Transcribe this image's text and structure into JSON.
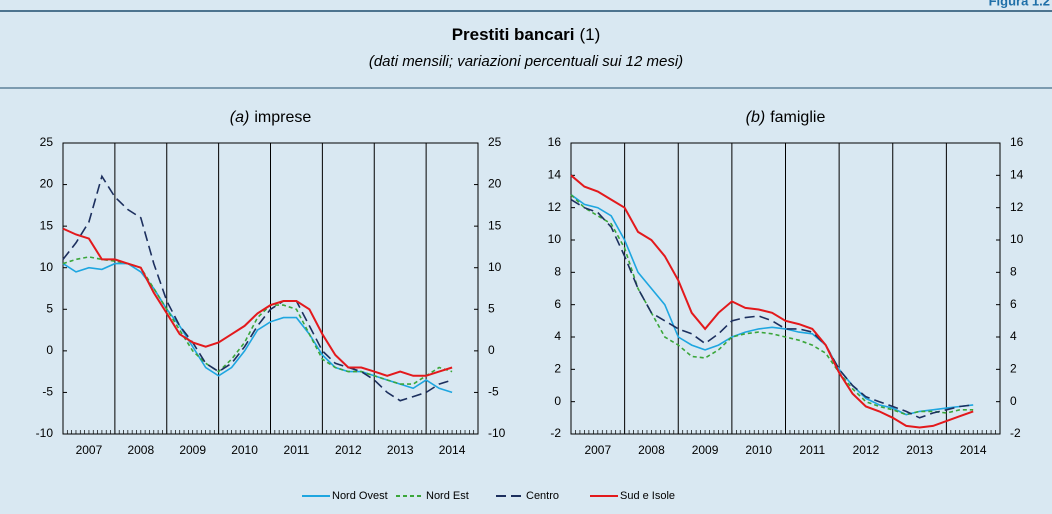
{
  "header": {
    "figure": "Figura 1.2",
    "title": "Prestiti bancari",
    "note": "(1)",
    "subtitle": "(dati mensili; variazioni percentuali sui 12 mesi)"
  },
  "chart_data": [
    {
      "type": "line",
      "panel": "(a)",
      "title": "imprese",
      "x": [
        2007,
        2007.25,
        2007.5,
        2007.75,
        2008,
        2008.25,
        2008.5,
        2008.75,
        2009,
        2009.25,
        2009.5,
        2009.75,
        2010,
        2010.25,
        2010.5,
        2010.75,
        2011,
        2011.25,
        2011.5,
        2011.75,
        2012,
        2012.25,
        2012.5,
        2012.75,
        2013,
        2013.25,
        2013.5,
        2013.75,
        2014,
        2014.25,
        2014.5
      ],
      "xlim": [
        2007,
        2015
      ],
      "xticks": [
        2007,
        2008,
        2009,
        2010,
        2011,
        2012,
        2013,
        2014
      ],
      "ylim": [
        -10,
        25
      ],
      "yticks": [
        -10,
        -5,
        0,
        5,
        10,
        15,
        20,
        25
      ],
      "series": [
        {
          "name": "Nord Ovest",
          "color": "#1ea6e0",
          "style": "solid",
          "values": [
            10.5,
            9.5,
            10,
            9.8,
            10.5,
            10.5,
            9.5,
            7.5,
            5,
            3,
            0.5,
            -2,
            -3,
            -2,
            0,
            2.5,
            3.5,
            4,
            4,
            2,
            -0.5,
            -2,
            -2.5,
            -2.5,
            -3,
            -3.5,
            -4,
            -4.5,
            -3.5,
            -4.5,
            -5
          ]
        },
        {
          "name": "Nord Est",
          "color": "#3aa63a",
          "style": "dashed",
          "values": [
            10.5,
            11,
            11.3,
            11,
            10.8,
            10.5,
            10,
            7.5,
            5,
            2.5,
            0,
            -1.5,
            -2.5,
            -1,
            1,
            4,
            5.5,
            5.5,
            5,
            2,
            -1,
            -2,
            -2.5,
            -2.5,
            -3,
            -3.5,
            -4,
            -4,
            -3,
            -2,
            -2.5
          ]
        },
        {
          "name": "Centro",
          "color": "#1c2f5e",
          "style": "long-dashed",
          "values": [
            11,
            13,
            15.5,
            21,
            18.5,
            17,
            16,
            10.5,
            6,
            3,
            1,
            -1.5,
            -2.5,
            -1.5,
            0.5,
            3,
            5,
            6,
            6,
            3,
            0,
            -1.5,
            -2,
            -2.5,
            -3.5,
            -5,
            -6,
            -5.5,
            -5,
            -4,
            -3.5
          ]
        },
        {
          "name": "Sud e Isole",
          "color": "#e3191c",
          "style": "solid",
          "values": [
            14.7,
            14,
            13.5,
            11,
            11,
            10.5,
            10,
            7,
            4.5,
            2,
            1,
            0.5,
            1,
            2,
            3,
            4.5,
            5.5,
            6,
            6,
            5,
            2,
            -0.5,
            -2,
            -2,
            -2.5,
            -3,
            -2.5,
            -3,
            -3,
            -2.5,
            -2
          ]
        }
      ]
    },
    {
      "type": "line",
      "panel": "(b)",
      "title": "famiglie",
      "x": [
        2007,
        2007.25,
        2007.5,
        2007.75,
        2008,
        2008.25,
        2008.5,
        2008.75,
        2009,
        2009.25,
        2009.5,
        2009.75,
        2010,
        2010.25,
        2010.5,
        2010.75,
        2011,
        2011.25,
        2011.5,
        2011.75,
        2012,
        2012.25,
        2012.5,
        2012.75,
        2013,
        2013.25,
        2013.5,
        2013.75,
        2014,
        2014.25,
        2014.5
      ],
      "xlim": [
        2007,
        2015
      ],
      "xticks": [
        2007,
        2008,
        2009,
        2010,
        2011,
        2012,
        2013,
        2014
      ],
      "ylim": [
        -2,
        16
      ],
      "yticks": [
        -2,
        0,
        2,
        4,
        6,
        8,
        10,
        12,
        14,
        16
      ],
      "series": [
        {
          "name": "Nord Ovest",
          "color": "#1ea6e0",
          "style": "solid",
          "values": [
            12.8,
            12.2,
            12,
            11.5,
            10,
            8,
            7,
            6,
            4,
            3.5,
            3.2,
            3.5,
            4,
            4.3,
            4.5,
            4.6,
            4.5,
            4.3,
            4.2,
            3.5,
            2,
            1,
            0.2,
            -0.2,
            -0.4,
            -0.8,
            -0.6,
            -0.5,
            -0.4,
            -0.3,
            -0.2
          ]
        },
        {
          "name": "Nord Est",
          "color": "#3aa63a",
          "style": "dashed",
          "values": [
            12.8,
            12,
            11.5,
            11,
            9.5,
            7,
            5.5,
            4,
            3.5,
            2.8,
            2.7,
            3.2,
            4,
            4.2,
            4.3,
            4.2,
            4,
            3.8,
            3.5,
            3,
            1.8,
            0.8,
            0,
            -0.3,
            -0.5,
            -0.8,
            -0.6,
            -0.6,
            -0.7,
            -0.5,
            -0.5
          ]
        },
        {
          "name": "Centro",
          "color": "#1c2f5e",
          "style": "long-dashed",
          "values": [
            12.5,
            12,
            11.7,
            10.8,
            9,
            7,
            5.5,
            5,
            4.5,
            4.2,
            3.6,
            4.2,
            5,
            5.2,
            5.3,
            5,
            4.5,
            4.5,
            4.3,
            3.5,
            2,
            1,
            0.3,
            0,
            -0.3,
            -0.6,
            -1,
            -0.7,
            -0.5,
            -0.3,
            -0.2
          ]
        },
        {
          "name": "Sud e Isole",
          "color": "#e3191c",
          "style": "solid",
          "values": [
            14,
            13.3,
            13,
            12.5,
            12,
            10.5,
            10,
            9,
            7.5,
            5.5,
            4.5,
            5.5,
            6.2,
            5.8,
            5.7,
            5.5,
            5,
            4.8,
            4.5,
            3.5,
            1.8,
            0.5,
            -0.3,
            -0.6,
            -1,
            -1.5,
            -1.6,
            -1.5,
            -1.2,
            -0.9,
            -0.6
          ]
        }
      ]
    }
  ]
}
